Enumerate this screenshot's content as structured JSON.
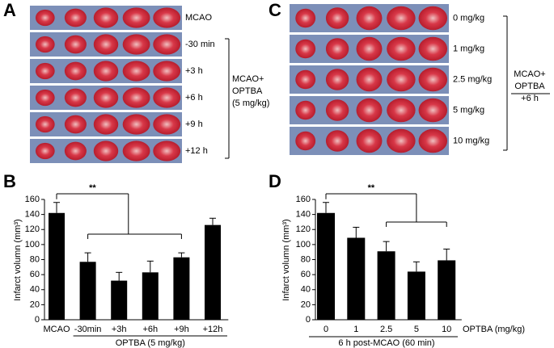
{
  "panels": [
    {
      "label": "A",
      "rows": [
        "MCAO",
        "-30 min",
        "+3 h",
        "+6 h",
        "+9 h",
        "+12 h"
      ],
      "group_label": [
        "MCAO+",
        "OPTBA",
        "(5 mg/kg)"
      ]
    },
    {
      "label": "C",
      "rows": [
        "0 mg/kg",
        "1 mg/kg",
        "2.5 mg/kg",
        "5 mg/kg",
        "10 mg/kg"
      ],
      "group_label": [
        "MCAO+",
        "OPTBA",
        "+6 h"
      ]
    }
  ],
  "chart_data": [
    {
      "type": "bar",
      "panel_label": "B",
      "categories": [
        "MCAO",
        "-30min",
        "+3h",
        "+6h",
        "+9h",
        "+12h"
      ],
      "values": [
        142,
        77,
        52,
        63,
        83,
        126
      ],
      "errors": [
        14,
        12,
        11,
        15,
        6,
        9
      ],
      "color": "#000000",
      "ylim": [
        0,
        160
      ],
      "yticks": [
        0,
        20,
        40,
        60,
        80,
        100,
        120,
        140,
        160
      ],
      "ylabel": "Infarct volumn (mm³)",
      "xlabel": "OPTBA (5 mg/kg)",
      "annotation": "**"
    },
    {
      "type": "bar",
      "panel_label": "D",
      "categories": [
        "0",
        "1",
        "2.5",
        "5",
        "10"
      ],
      "values": [
        142,
        109,
        91,
        64,
        79
      ],
      "errors": [
        14,
        14,
        13,
        13,
        15
      ],
      "color": "#000000",
      "ylim": [
        0,
        160
      ],
      "yticks": [
        0,
        20,
        40,
        60,
        80,
        100,
        120,
        140,
        160
      ],
      "ylabel": "Infarct volumn  (mm³)",
      "xlabel": "OPTBA (mg/kg)",
      "xlabel2": "6 h post-MCAO (60 min)",
      "annotation": "**"
    }
  ]
}
